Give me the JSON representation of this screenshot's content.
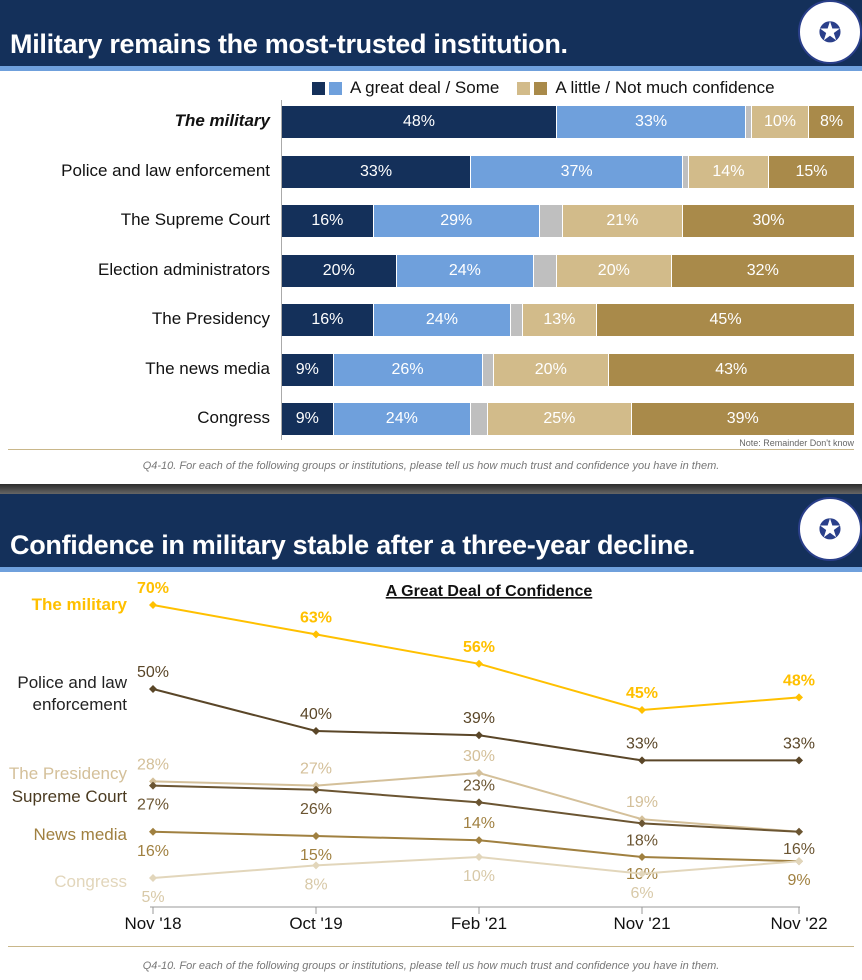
{
  "slide1": {
    "title": "Military remains the most-trusted institution.",
    "legend": {
      "positive": "A great deal / Some",
      "negative": "A little / Not much confidence"
    },
    "note": "Note: Remainder Don't know",
    "question": "Q4-10. For each of the following groups or institutions, please tell us how much trust and confidence you have in them."
  },
  "slide2": {
    "title": "Confidence in military stable after a three-year decline.",
    "question": "Q4-10. For each of the following groups or institutions, please tell us how much trust and confidence you have in them."
  },
  "colors": {
    "header": "#14305a",
    "great_deal": "#14305a",
    "some": "#6fa0dc",
    "dont_know": "#bfbfbf",
    "a_little": "#d2bb8a",
    "not_much": "#a98a4a"
  },
  "chart_data": [
    {
      "type": "bar",
      "stacked": true,
      "orientation": "horizontal",
      "categories": [
        "The military",
        "Police and law enforcement",
        "The Supreme Court",
        "Election administrators",
        "The Presidency",
        "The news media",
        "Congress"
      ],
      "series": [
        {
          "name": "A great deal",
          "values": [
            48,
            33,
            16,
            20,
            16,
            9,
            9
          ]
        },
        {
          "name": "Some",
          "values": [
            33,
            37,
            29,
            24,
            24,
            26,
            24
          ]
        },
        {
          "name": "Don't know",
          "values": [
            1,
            1,
            4,
            4,
            2,
            2,
            3
          ]
        },
        {
          "name": "A little",
          "values": [
            10,
            14,
            21,
            20,
            13,
            20,
            25
          ]
        },
        {
          "name": "Not much",
          "values": [
            8,
            15,
            30,
            32,
            45,
            43,
            39
          ]
        }
      ]
    },
    {
      "type": "line",
      "title": "A Great Deal of Confidence",
      "x": [
        "Nov '18",
        "Oct '19",
        "Feb '21",
        "Nov '21",
        "Nov '22"
      ],
      "ylim": [
        0,
        75
      ],
      "series": [
        {
          "name": "The military",
          "color": "#ffc000",
          "bold": true,
          "values": [
            70,
            63,
            56,
            45,
            48
          ]
        },
        {
          "name": "Police and law enforcement",
          "color": "#5a4628",
          "values": [
            50,
            40,
            39,
            33,
            33
          ]
        },
        {
          "name": "The Presidency",
          "color": "#d4c09a",
          "values": [
            28,
            27,
            30,
            19,
            16
          ]
        },
        {
          "name": "Supreme Court",
          "color": "#6b5532",
          "values": [
            27,
            26,
            23,
            18,
            16
          ]
        },
        {
          "name": "News media",
          "color": "#a08040",
          "values": [
            16,
            15,
            14,
            10,
            9
          ]
        },
        {
          "name": "Congress",
          "color": "#e2d6bb",
          "values": [
            5,
            8,
            10,
            6,
            9
          ]
        }
      ]
    }
  ]
}
